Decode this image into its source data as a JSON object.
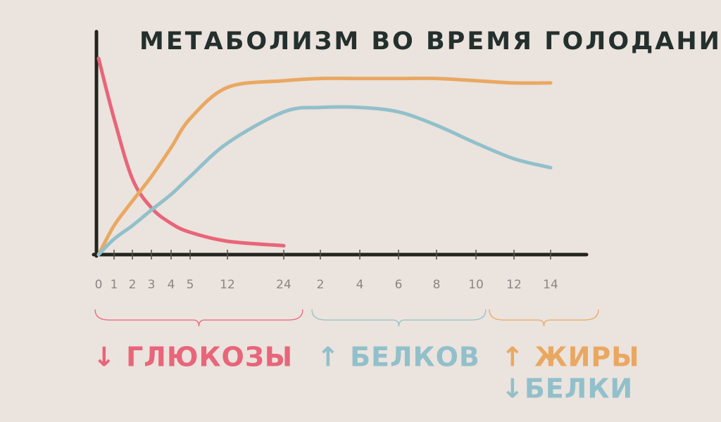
{
  "chart_data": {
    "type": "line",
    "title": "МЕТАБОЛИЗМ ВО ВРЕМЯ ГОЛОДАНИЯ",
    "categories": [
      "0",
      "1",
      "2",
      "3",
      "4",
      "5",
      "12",
      "24",
      "2",
      "4",
      "6",
      "8",
      "10",
      "12",
      "14"
    ],
    "ylim": [
      0,
      100
    ],
    "series": [
      {
        "color": "#e8657a",
        "values": [
          88,
          61,
          34,
          21,
          14,
          10,
          6,
          4,
          null,
          null,
          null,
          null,
          null,
          null,
          null
        ]
      },
      {
        "color": "#e9a862",
        "values": [
          0,
          13,
          24,
          35,
          48,
          61,
          75,
          78,
          79,
          79,
          79,
          79,
          78,
          77,
          77
        ]
      },
      {
        "color": "#91c0cb",
        "values": [
          0,
          7,
          13,
          20,
          27,
          35,
          50,
          64,
          66,
          66,
          64,
          58,
          50,
          43,
          39
        ]
      }
    ],
    "annotations": [
      {
        "text": "↓ ГЛЮКОЗЫ",
        "color": "#e8657a"
      },
      {
        "text": "↑ БЕЛКОВ",
        "color": "#91c0cb"
      },
      {
        "text": "↑ ЖИРЫ",
        "color": "#e9a862"
      },
      {
        "text": "↓БЕЛКИ",
        "color": "#91c0cb"
      }
    ]
  }
}
